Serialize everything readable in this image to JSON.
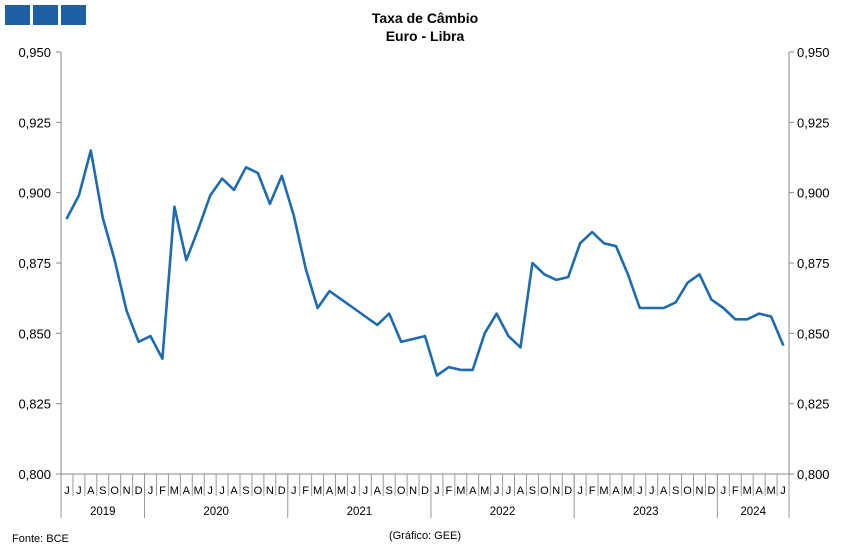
{
  "header": {
    "logo_colors": [
      "#1f5fa6",
      "#1f5fa6",
      "#1f5fa6"
    ]
  },
  "footer": {
    "source": "Fonte: BCE",
    "credit": "(Gráfico: GEE)"
  },
  "chart_data": {
    "type": "line",
    "title": "Taxa de Câmbio",
    "subtitle": "Euro - Libra",
    "xlabel": "",
    "ylabel": "",
    "ylim": [
      0.8,
      0.95
    ],
    "yticks": [
      "0,800",
      "0,825",
      "0,850",
      "0,875",
      "0,900",
      "0,925",
      "0,950"
    ],
    "grid": false,
    "line_color": "#1f6bb0",
    "month_labels": [
      "J",
      "J",
      "A",
      "S",
      "O",
      "N",
      "D",
      "J",
      "F",
      "M",
      "A",
      "M",
      "J",
      "J",
      "A",
      "S",
      "O",
      "N",
      "D",
      "J",
      "F",
      "M",
      "A",
      "M",
      "J",
      "J",
      "A",
      "S",
      "O",
      "N",
      "D",
      "J",
      "F",
      "M",
      "A",
      "M",
      "J",
      "J",
      "A",
      "S",
      "O",
      "N",
      "D",
      "J",
      "F",
      "M",
      "A",
      "M",
      "J",
      "J",
      "A",
      "S",
      "O",
      "N",
      "D",
      "J",
      "F",
      "M",
      "A",
      "M",
      "J"
    ],
    "years": [
      {
        "label": "2019",
        "months": 7
      },
      {
        "label": "2020",
        "months": 12
      },
      {
        "label": "2021",
        "months": 12
      },
      {
        "label": "2022",
        "months": 12
      },
      {
        "label": "2023",
        "months": 12
      },
      {
        "label": "2024",
        "months": 6
      }
    ],
    "series": [
      {
        "values": [
          0.891,
          0.899,
          0.915,
          0.891,
          0.876,
          0.858,
          0.847,
          0.849,
          0.841,
          0.895,
          0.876,
          0.887,
          0.899,
          0.905,
          0.901,
          0.909,
          0.907,
          0.896,
          0.906,
          0.892,
          0.873,
          0.859,
          0.865,
          0.862,
          0.859,
          0.856,
          0.853,
          0.857,
          0.847,
          0.848,
          0.849,
          0.835,
          0.838,
          0.837,
          0.837,
          0.85,
          0.857,
          0.849,
          0.845,
          0.875,
          0.871,
          0.869,
          0.87,
          0.882,
          0.886,
          0.882,
          0.881,
          0.871,
          0.859,
          0.859,
          0.859,
          0.861,
          0.868,
          0.871,
          0.862,
          0.859,
          0.855,
          0.855,
          0.857,
          0.856,
          0.846
        ]
      }
    ]
  }
}
